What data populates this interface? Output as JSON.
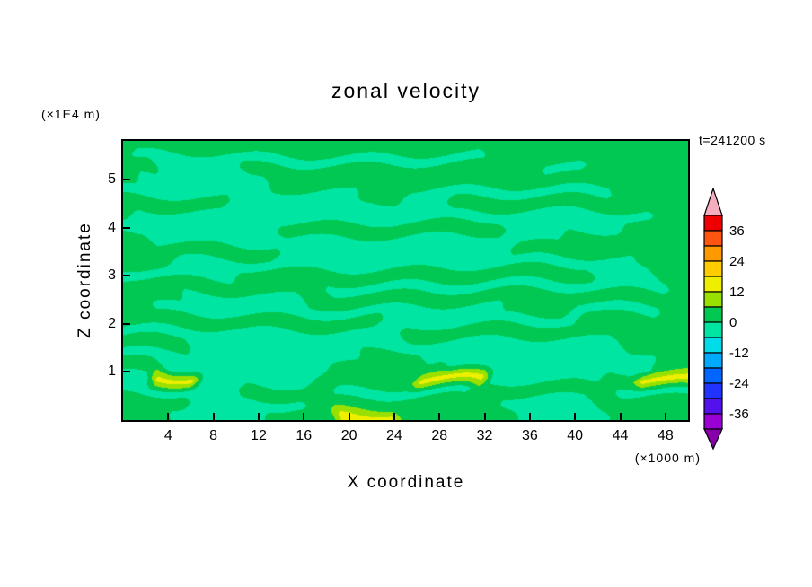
{
  "chart_data": {
    "type": "heatmap",
    "title": "zonal velocity",
    "time_label": "t=241200 s",
    "xlabel": "X coordinate",
    "ylabel": "Z coordinate",
    "x_unit_label": "(×1000 m)",
    "y_unit_label": "(×1E4 m)",
    "xlim": [
      0,
      50
    ],
    "zlim": [
      0,
      5.8
    ],
    "x_ticks": [
      4,
      8,
      12,
      16,
      20,
      24,
      28,
      32,
      36,
      40,
      44,
      48
    ],
    "z_ticks": [
      1,
      2,
      3,
      4,
      5
    ],
    "colorbar": {
      "levels": [
        -42,
        -36,
        -30,
        -24,
        -18,
        -12,
        -6,
        0,
        6,
        12,
        18,
        24,
        30,
        36,
        42
      ],
      "tick_labels": [
        36,
        24,
        12,
        0,
        -12,
        -24,
        -36
      ],
      "colors_low_to_high": [
        "#8800aa",
        "#9900d4",
        "#5510ee",
        "#2233ff",
        "#0066ff",
        "#00aaff",
        "#00dde8",
        "#00e5a2",
        "#00c853",
        "#99e000",
        "#eeee00",
        "#ffcc00",
        "#ff9900",
        "#ff5511",
        "#ee0000",
        "#f5aec0"
      ]
    },
    "field": {
      "cols": 48,
      "rows": 24,
      "rows_top_to_bottom_rle": [
        [
          [
            3,
            48
          ]
        ],
        [
          [
            3,
            1
          ],
          [
            -2,
            30
          ],
          [
            3,
            17
          ]
        ],
        [
          [
            3,
            3
          ],
          [
            -2,
            7
          ],
          [
            3,
            25
          ],
          [
            -2,
            4
          ],
          [
            3,
            9
          ]
        ],
        [
          [
            3,
            1
          ],
          [
            -2,
            11
          ],
          [
            3,
            36
          ]
        ],
        [
          [
            -2,
            20
          ],
          [
            3,
            4
          ],
          [
            -2,
            18
          ],
          [
            3,
            6
          ]
        ],
        [
          [
            3,
            9
          ],
          [
            -2,
            19
          ],
          [
            3,
            20
          ]
        ],
        [
          [
            3,
            1
          ],
          [
            -2,
            44
          ],
          [
            3,
            3
          ]
        ],
        [
          [
            -2,
            13
          ],
          [
            3,
            19
          ],
          [
            -2,
            10
          ],
          [
            3,
            6
          ]
        ],
        [
          [
            3,
            2
          ],
          [
            -2,
            35
          ],
          [
            3,
            11
          ]
        ],
        [
          [
            3,
            13
          ],
          [
            -2,
            20
          ],
          [
            3,
            15
          ]
        ],
        [
          [
            3,
            4
          ],
          [
            -2,
            40
          ],
          [
            3,
            4
          ]
        ],
        [
          [
            -2,
            10
          ],
          [
            3,
            30
          ],
          [
            -2,
            5
          ],
          [
            3,
            3
          ]
        ],
        [
          [
            3,
            17
          ],
          [
            -2,
            29
          ],
          [
            3,
            2
          ]
        ],
        [
          [
            3,
            5
          ],
          [
            -2,
            10
          ],
          [
            3,
            33
          ]
        ],
        [
          [
            3,
            2
          ],
          [
            -2,
            30
          ],
          [
            3,
            6
          ],
          [
            -2,
            8
          ],
          [
            3,
            2
          ]
        ],
        [
          [
            3,
            22
          ],
          [
            -2,
            17
          ],
          [
            3,
            9
          ]
        ],
        [
          [
            -2,
            24
          ],
          [
            3,
            24
          ]
        ],
        [
          [
            3,
            6
          ],
          [
            -2,
            36
          ],
          [
            3,
            6
          ]
        ],
        [
          [
            -2,
            20
          ],
          [
            3,
            5
          ],
          [
            -2,
            20
          ],
          [
            3,
            3
          ]
        ],
        [
          [
            3,
            3
          ],
          [
            -2,
            14
          ],
          [
            3,
            10
          ],
          [
            -2,
            18
          ],
          [
            3,
            3
          ]
        ],
        [
          [
            -2,
            2
          ],
          [
            15,
            4
          ],
          [
            -2,
            10
          ],
          [
            3,
            9
          ],
          [
            15,
            6
          ],
          [
            -2,
            10
          ],
          [
            3,
            3
          ],
          [
            15,
            4
          ]
        ],
        [
          [
            -2,
            10
          ],
          [
            3,
            8
          ],
          [
            -2,
            12
          ],
          [
            3,
            12
          ],
          [
            -2,
            6
          ]
        ],
        [
          [
            3,
            6
          ],
          [
            -2,
            10
          ],
          [
            3,
            16
          ],
          [
            -2,
            8
          ],
          [
            3,
            8
          ]
        ],
        [
          [
            3,
            4
          ],
          [
            -2,
            8
          ],
          [
            3,
            6
          ],
          [
            15,
            5
          ],
          [
            3,
            10
          ],
          [
            -2,
            8
          ],
          [
            3,
            7
          ]
        ]
      ]
    }
  }
}
